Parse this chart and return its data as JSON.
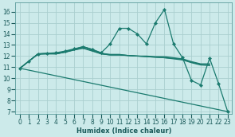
{
  "xlabel": "Humidex (Indice chaleur)",
  "bg_color": "#cceaea",
  "grid_color": "#aacfcf",
  "line_color": "#1a7a6e",
  "xlim": [
    -0.5,
    23.5
  ],
  "ylim": [
    6.8,
    16.8
  ],
  "yticks": [
    7,
    8,
    9,
    10,
    11,
    12,
    13,
    14,
    15,
    16
  ],
  "xticks": [
    0,
    1,
    2,
    3,
    4,
    5,
    6,
    7,
    8,
    9,
    10,
    11,
    12,
    13,
    14,
    15,
    16,
    17,
    18,
    19,
    20,
    21,
    22,
    23
  ],
  "series": [
    {
      "x": [
        0,
        1,
        2,
        3,
        4,
        5,
        6,
        7,
        8,
        9,
        10,
        11,
        12,
        13,
        14,
        15,
        16,
        17,
        18,
        19,
        20,
        21
      ],
      "y": [
        10.9,
        11.55,
        12.2,
        12.25,
        12.2,
        12.4,
        12.6,
        12.85,
        12.6,
        12.25,
        12.15,
        12.15,
        12.05,
        12.0,
        12.0,
        11.95,
        11.95,
        11.85,
        11.75,
        11.5,
        11.3,
        11.3
      ],
      "marker": false
    },
    {
      "x": [
        0,
        1,
        2,
        3,
        4,
        5,
        6,
        7,
        8,
        9,
        10,
        11,
        12,
        13,
        14,
        15,
        16,
        17,
        18,
        19,
        20,
        21
      ],
      "y": [
        10.9,
        11.55,
        12.2,
        12.2,
        12.2,
        12.35,
        12.55,
        12.75,
        12.5,
        12.2,
        12.1,
        12.1,
        12.05,
        12.0,
        11.95,
        11.9,
        11.85,
        11.8,
        11.7,
        11.45,
        11.25,
        11.2
      ],
      "marker": false
    },
    {
      "x": [
        0,
        1,
        2,
        3,
        4,
        5,
        6,
        7,
        8,
        9,
        10,
        11,
        12,
        13,
        14,
        15,
        16,
        17,
        18,
        19,
        20,
        21
      ],
      "y": [
        10.9,
        11.55,
        12.15,
        12.2,
        12.2,
        12.35,
        12.55,
        12.7,
        12.45,
        12.2,
        12.1,
        12.1,
        12.05,
        12.0,
        11.95,
        11.9,
        11.85,
        11.75,
        11.65,
        11.4,
        11.2,
        11.15
      ],
      "marker": false
    },
    {
      "x": [
        0,
        1,
        2,
        3,
        4,
        5,
        6,
        7,
        8,
        9,
        10,
        11,
        12,
        13,
        14,
        15,
        16,
        17,
        18,
        19,
        20,
        21,
        22,
        23
      ],
      "y": [
        10.9,
        11.55,
        12.2,
        12.25,
        12.3,
        12.45,
        12.65,
        12.85,
        12.6,
        12.3,
        13.1,
        14.5,
        14.5,
        14.0,
        13.1,
        15.0,
        16.2,
        13.1,
        11.85,
        9.8,
        9.4,
        11.8,
        9.5,
        7.0
      ],
      "marker": true
    },
    {
      "x": [
        0,
        23
      ],
      "y": [
        10.9,
        7.0
      ],
      "marker": false
    }
  ]
}
